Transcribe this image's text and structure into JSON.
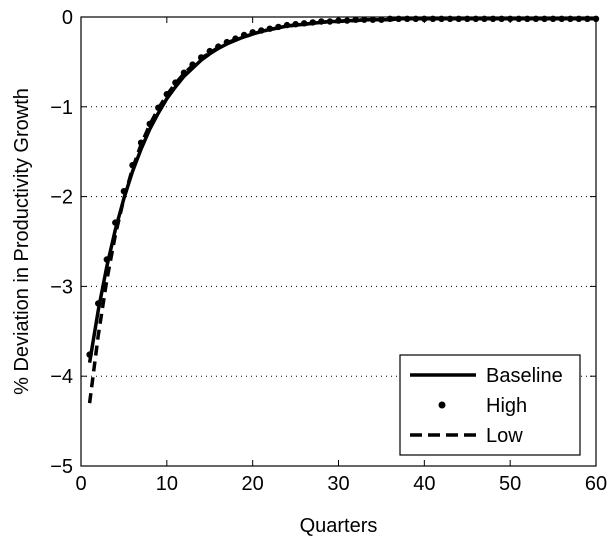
{
  "chart_data": {
    "type": "line",
    "xlabel": "Quarters",
    "ylabel": "% Deviation in Productivity Growth",
    "xlim": [
      0,
      60
    ],
    "ylim": [
      -5,
      0
    ],
    "xticks": [
      0,
      10,
      20,
      30,
      40,
      50,
      60
    ],
    "yticks": [
      -5,
      -4,
      -3,
      -2,
      -1,
      0
    ],
    "xtick_labels": [
      "0",
      "10",
      "20",
      "30",
      "40",
      "50",
      "60"
    ],
    "ytick_labels": [
      "−5",
      "−4",
      "−3",
      "−2",
      "−1",
      "0"
    ],
    "grid": "horizontal-dotted",
    "legend_position": "bottom-right",
    "x": [
      1,
      2,
      3,
      4,
      5,
      6,
      7,
      8,
      9,
      10,
      11,
      12,
      13,
      14,
      15,
      16,
      17,
      18,
      19,
      20,
      21,
      22,
      23,
      24,
      25,
      26,
      27,
      28,
      29,
      30,
      31,
      32,
      33,
      34,
      35,
      36,
      37,
      38,
      39,
      40,
      41,
      42,
      43,
      44,
      45,
      46,
      47,
      48,
      49,
      50,
      51,
      52,
      53,
      54,
      55,
      56,
      57,
      58,
      59,
      60
    ],
    "series": [
      {
        "name": "Baseline",
        "style": "solid",
        "color": "#000000",
        "values": [
          -3.85,
          -3.27,
          -2.78,
          -2.37,
          -2.02,
          -1.72,
          -1.47,
          -1.25,
          -1.07,
          -0.91,
          -0.78,
          -0.66,
          -0.57,
          -0.48,
          -0.41,
          -0.35,
          -0.3,
          -0.26,
          -0.22,
          -0.19,
          -0.16,
          -0.14,
          -0.12,
          -0.1,
          -0.09,
          -0.08,
          -0.07,
          -0.06,
          -0.05,
          -0.05,
          -0.04,
          -0.04,
          -0.03,
          -0.03,
          -0.03,
          -0.03,
          -0.02,
          -0.02,
          -0.02,
          -0.02,
          -0.02,
          -0.02,
          -0.02,
          -0.02,
          -0.02,
          -0.02,
          -0.02,
          -0.02,
          -0.02,
          -0.02,
          -0.02,
          -0.02,
          -0.02,
          -0.02,
          -0.02,
          -0.02,
          -0.02,
          -0.02,
          -0.02,
          -0.02
        ]
      },
      {
        "name": "High",
        "style": "markers",
        "color": "#000000",
        "values": [
          -3.76,
          -3.19,
          -2.7,
          -2.29,
          -1.94,
          -1.65,
          -1.4,
          -1.19,
          -1.01,
          -0.86,
          -0.73,
          -0.62,
          -0.53,
          -0.45,
          -0.38,
          -0.33,
          -0.28,
          -0.24,
          -0.2,
          -0.17,
          -0.15,
          -0.13,
          -0.11,
          -0.09,
          -0.08,
          -0.07,
          -0.06,
          -0.05,
          -0.05,
          -0.04,
          -0.04,
          -0.03,
          -0.03,
          -0.03,
          -0.03,
          -0.02,
          -0.02,
          -0.02,
          -0.02,
          -0.02,
          -0.02,
          -0.02,
          -0.02,
          -0.02,
          -0.02,
          -0.02,
          -0.02,
          -0.02,
          -0.02,
          -0.02,
          -0.02,
          -0.02,
          -0.02,
          -0.02,
          -0.02,
          -0.02,
          -0.02,
          -0.02,
          -0.02,
          -0.02
        ]
      },
      {
        "name": "Low",
        "style": "dashed",
        "color": "#000000",
        "values": [
          -4.3,
          -3.55,
          -2.93,
          -2.43,
          -2.02,
          -1.69,
          -1.42,
          -1.2,
          -1.02,
          -0.87,
          -0.74,
          -0.63,
          -0.54,
          -0.46,
          -0.4,
          -0.34,
          -0.29,
          -0.25,
          -0.22,
          -0.19,
          -0.16,
          -0.14,
          -0.12,
          -0.1,
          -0.09,
          -0.08,
          -0.07,
          -0.06,
          -0.05,
          -0.05,
          -0.04,
          -0.04,
          -0.03,
          -0.03,
          -0.03,
          -0.03,
          -0.02,
          -0.02,
          -0.02,
          -0.02,
          -0.02,
          -0.02,
          -0.02,
          -0.02,
          -0.02,
          -0.02,
          -0.02,
          -0.02,
          -0.02,
          -0.02,
          -0.02,
          -0.02,
          -0.02,
          -0.02,
          -0.02,
          -0.02,
          -0.02,
          -0.02,
          -0.02,
          -0.02
        ]
      }
    ]
  }
}
